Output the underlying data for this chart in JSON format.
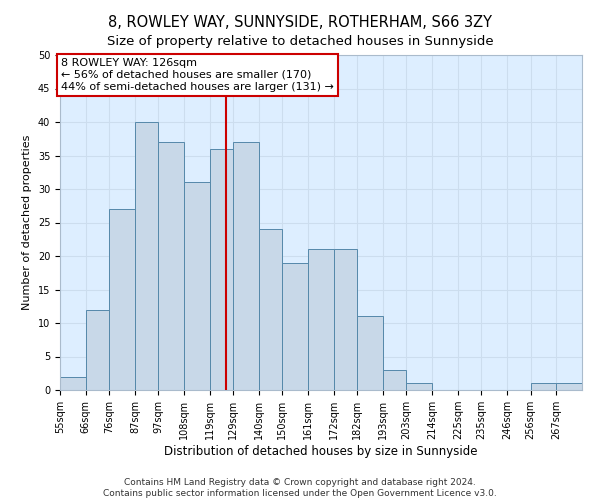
{
  "title": "8, ROWLEY WAY, SUNNYSIDE, ROTHERHAM, S66 3ZY",
  "subtitle": "Size of property relative to detached houses in Sunnyside",
  "xlabel": "Distribution of detached houses by size in Sunnyside",
  "ylabel": "Number of detached properties",
  "bar_edges": [
    55,
    66,
    76,
    87,
    97,
    108,
    119,
    129,
    140,
    150,
    161,
    172,
    182,
    193,
    203,
    214,
    225,
    235,
    246,
    256,
    267,
    278
  ],
  "bar_heights": [
    2,
    12,
    27,
    40,
    37,
    31,
    36,
    37,
    24,
    19,
    21,
    21,
    11,
    3,
    1,
    0,
    0,
    0,
    0,
    1,
    1
  ],
  "bar_color": "#c8d8e8",
  "bar_edge_color": "#5588aa",
  "property_size": 126,
  "vline_color": "#cc0000",
  "annotation_line1": "8 ROWLEY WAY: 126sqm",
  "annotation_line2": "← 56% of detached houses are smaller (170)",
  "annotation_line3": "44% of semi-detached houses are larger (131) →",
  "annotation_box_color": "#ffffff",
  "annotation_box_edge_color": "#cc0000",
  "ylim": [
    0,
    50
  ],
  "yticks": [
    0,
    5,
    10,
    15,
    20,
    25,
    30,
    35,
    40,
    45,
    50
  ],
  "grid_color": "#ccddee",
  "background_color": "#ddeeff",
  "footer_text": "Contains HM Land Registry data © Crown copyright and database right 2024.\nContains public sector information licensed under the Open Government Licence v3.0.",
  "title_fontsize": 10.5,
  "subtitle_fontsize": 9.5,
  "xlabel_fontsize": 8.5,
  "ylabel_fontsize": 8,
  "tick_fontsize": 7,
  "annotation_fontsize": 8,
  "footer_fontsize": 6.5
}
